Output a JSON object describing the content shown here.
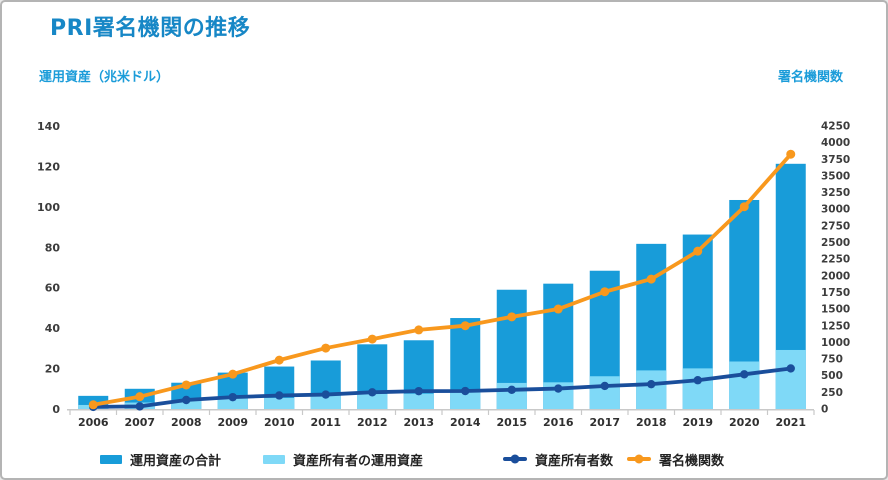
{
  "header": {
    "title": "PRI署名機関の推移"
  },
  "axes": {
    "left_title": "運用資産（兆米ドル）",
    "right_title": "署名機関数"
  },
  "legend": [
    {
      "label": "運用資産の合計",
      "type": "bar",
      "color": "#189cd9"
    },
    {
      "label": "資産所有者の運用資産",
      "type": "bar",
      "color": "#7fd9f7"
    },
    {
      "label": "資産所有者数",
      "type": "line",
      "color": "#1a4e9b"
    },
    {
      "label": "署名機関数",
      "type": "line",
      "color": "#f8981d"
    }
  ],
  "chart_data": {
    "type": "bar",
    "subtype": "dual-axis bars + lines",
    "title": "PRI署名機関の推移",
    "categories": [
      "2006",
      "2007",
      "2008",
      "2009",
      "2010",
      "2011",
      "2012",
      "2013",
      "2014",
      "2015",
      "2016",
      "2017",
      "2018",
      "2019",
      "2020",
      "2021"
    ],
    "series": [
      {
        "name": "運用資産の合計",
        "type": "bar",
        "axis": "left",
        "color": "#189cd9",
        "values": [
          6.5,
          10,
          13,
          18,
          21,
          24,
          32,
          34,
          45,
          59,
          62,
          68.4,
          81.7,
          86.3,
          103.4,
          121.3
        ]
      },
      {
        "name": "資産所有者の運用資産",
        "type": "bar",
        "axis": "left",
        "color": "#7fd9f7",
        "values": [
          2,
          3.2,
          4.2,
          5.2,
          5.5,
          6.6,
          7.5,
          7.6,
          8.4,
          12.9,
          13.2,
          16.2,
          19.1,
          20.1,
          23.5,
          29.2
        ]
      },
      {
        "name": "資産所有者数",
        "type": "line",
        "axis": "right",
        "color": "#1a4e9b",
        "values": [
          32,
          39,
          135,
          178,
          203,
          217,
          251,
          268,
          270,
          288,
          307,
          346,
          373,
          432,
          521,
          609
        ]
      },
      {
        "name": "署名機関数",
        "type": "line",
        "axis": "right",
        "color": "#f8981d",
        "values": [
          63,
          185,
          361,
          523,
          734,
          915,
          1050,
          1188,
          1251,
          1384,
          1501,
          1761,
          1951,
          2370,
          3038,
          3826
        ]
      }
    ],
    "left_axis": {
      "label": "運用資産（兆米ドル）",
      "min": 0,
      "max": 140,
      "step": 20,
      "ticks": [
        0,
        20,
        40,
        60,
        80,
        100,
        120,
        140
      ]
    },
    "right_axis": {
      "label": "署名機関数",
      "min": 0,
      "max": 4250,
      "step": 250,
      "ticks": [
        0,
        250,
        500,
        750,
        1000,
        1250,
        1500,
        1750,
        2000,
        2250,
        2500,
        2750,
        3000,
        3250,
        3500,
        3750,
        4000,
        4250
      ]
    },
    "grid": false,
    "legend_position": "bottom"
  },
  "colors": {
    "title": "#1787c6",
    "axis_titles": "#1b9cd9",
    "tick_text": "#3c3c3c",
    "axis_line": "#c9c9c9",
    "bar_total": "#189cd9",
    "bar_ao": "#7fd9f7",
    "line_ao_count": "#1a4e9b",
    "line_signatories": "#f8981d"
  }
}
